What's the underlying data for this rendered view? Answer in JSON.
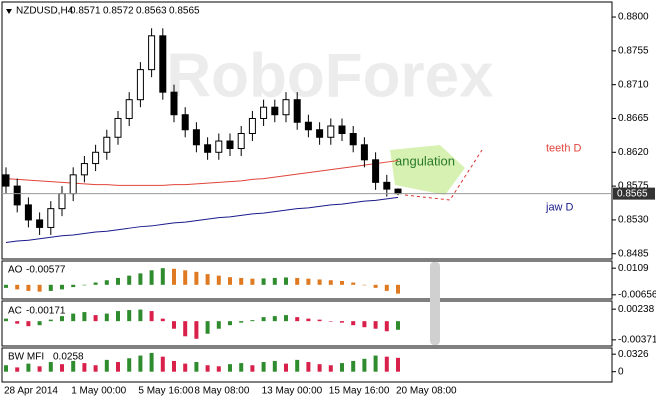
{
  "chart_data": [
    {
      "type": "candlestick",
      "title": "NZDUSD,H4",
      "watermark": "RoboForex",
      "grid": false,
      "categories": [
        "28 Apr 2014",
        null,
        null,
        null,
        null,
        null,
        "1 May 00:00",
        null,
        null,
        null,
        null,
        null,
        "5 May 16:00",
        null,
        null,
        null,
        null,
        "8 May 08:00",
        null,
        null,
        null,
        null,
        null,
        "13 May 00:00",
        null,
        null,
        null,
        null,
        null,
        "15 May 16:00",
        null,
        null,
        null,
        null,
        null,
        "20 May 08:00"
      ],
      "open": [
        0.859,
        0.8575,
        0.855,
        0.853,
        0.852,
        0.8545,
        0.8565,
        0.859,
        0.8605,
        0.862,
        0.864,
        0.8665,
        0.869,
        0.873,
        0.8775,
        0.87,
        0.867,
        0.865,
        0.863,
        0.862,
        0.8635,
        0.8625,
        0.8645,
        0.8665,
        0.868,
        0.867,
        0.869,
        0.866,
        0.865,
        0.864,
        0.8655,
        0.8645,
        0.863,
        0.861,
        0.858,
        0.8571
      ],
      "high": [
        0.86,
        0.8585,
        0.856,
        0.854,
        0.8555,
        0.8575,
        0.86,
        0.8615,
        0.863,
        0.865,
        0.8675,
        0.87,
        0.874,
        0.8785,
        0.8785,
        0.871,
        0.868,
        0.866,
        0.864,
        0.8645,
        0.8645,
        0.8655,
        0.8675,
        0.869,
        0.869,
        0.87,
        0.87,
        0.867,
        0.866,
        0.8665,
        0.8665,
        0.8655,
        0.864,
        0.862,
        0.859,
        0.8572
      ],
      "low": [
        0.8565,
        0.854,
        0.852,
        0.851,
        0.851,
        0.8535,
        0.8555,
        0.858,
        0.8595,
        0.861,
        0.863,
        0.8655,
        0.868,
        0.872,
        0.869,
        0.866,
        0.864,
        0.862,
        0.861,
        0.861,
        0.8615,
        0.8615,
        0.8635,
        0.8655,
        0.866,
        0.866,
        0.865,
        0.864,
        0.863,
        0.863,
        0.8635,
        0.862,
        0.86,
        0.857,
        0.8561,
        0.8563
      ],
      "close": [
        0.8575,
        0.855,
        0.853,
        0.852,
        0.8545,
        0.8565,
        0.859,
        0.8605,
        0.862,
        0.864,
        0.8665,
        0.869,
        0.873,
        0.8775,
        0.87,
        0.867,
        0.865,
        0.863,
        0.862,
        0.8635,
        0.8625,
        0.8645,
        0.8665,
        0.868,
        0.867,
        0.869,
        0.866,
        0.865,
        0.864,
        0.8655,
        0.8645,
        0.863,
        0.861,
        0.858,
        0.8571,
        0.8565
      ],
      "lines": [
        {
          "name": "jaw D",
          "color": "#1a1a8c",
          "values": [
            0.85,
            0.8502,
            0.8503,
            0.8505,
            0.8507,
            0.8509,
            0.851,
            0.8512,
            0.8514,
            0.8515,
            0.8517,
            0.8519,
            0.8521,
            0.8522,
            0.8524,
            0.8526,
            0.8527,
            0.8529,
            0.8531,
            0.8533,
            0.8534,
            0.8536,
            0.8538,
            0.8539,
            0.8541,
            0.8543,
            0.8545,
            0.8546,
            0.8548,
            0.855,
            0.8551,
            0.8553,
            0.8555,
            0.8556,
            0.8558,
            0.856
          ]
        },
        {
          "name": "teeth D",
          "color": "#e0443a",
          "values": [
            0.8585,
            0.8584,
            0.8583,
            0.8582,
            0.8581,
            0.858,
            0.8579,
            0.8578,
            0.8577,
            0.8577,
            0.8576,
            0.8576,
            0.8576,
            0.8576,
            0.8576,
            0.8577,
            0.8577,
            0.8578,
            0.8579,
            0.858,
            0.8581,
            0.8582,
            0.8584,
            0.8585,
            0.8587,
            0.8589,
            0.8591,
            0.8593,
            0.8595,
            0.8597,
            0.8599,
            0.8601,
            0.8603,
            0.8605,
            0.8607,
            0.8609
          ]
        }
      ],
      "annotation": "angulation",
      "ylim": [
        0.8478,
        0.882
      ],
      "yticks": [
        0.8485,
        {
          "value": 0.853,
          "label": "0.8530"
        },
        0.8575,
        {
          "value": 0.862,
          "label": "0.8620"
        },
        0.8665,
        {
          "value": 0.871,
          "label": "0.8710"
        },
        0.8755,
        {
          "value": 0.88,
          "label": "0.8800"
        }
      ]
    },
    {
      "type": "bar",
      "title": "AO",
      "last": -0.00577,
      "up_color": "#2e8b2e",
      "down_color": "#e07a22",
      "values": [
        -0.002,
        -0.003,
        -0.004,
        -0.0045,
        -0.004,
        -0.003,
        -0.0015,
        0,
        0.0015,
        0.003,
        0.0045,
        0.006,
        0.0075,
        0.0095,
        0.0109,
        0.0105,
        0.0095,
        0.0085,
        0.007,
        0.006,
        0.005,
        0.0045,
        0.004,
        0.0042,
        0.0045,
        0.0048,
        0.0045,
        0.004,
        0.0035,
        0.003,
        0.0025,
        0.0015,
        0,
        -0.002,
        -0.004,
        -0.00577
      ],
      "ylim": [
        -0.0093,
        0.0156
      ],
      "yticks": [
        -0.00656,
        0.0109
      ]
    },
    {
      "type": "bar",
      "title": "AC",
      "last": -0.00171,
      "up_color": "#2e8b2e",
      "down_color": "#d8204a",
      "values": [
        0.0005,
        -0.0005,
        -0.001,
        -0.0008,
        0.0003,
        0.001,
        0.0015,
        0.0018,
        0.0012,
        0.0015,
        0.002,
        0.0022,
        0.0023,
        0.002,
        0.0005,
        -0.0015,
        -0.003,
        -0.0035,
        -0.0025,
        -0.0015,
        -0.0008,
        -0.0003,
        0.0002,
        0.0008,
        0.001,
        0.0012,
        0.0008,
        0.0005,
        0.0003,
        0,
        -0.0003,
        -0.0008,
        -0.0012,
        -0.0015,
        -0.002,
        -0.00171
      ],
      "ylim": [
        -0.00493,
        0.004
      ],
      "yticks": [
        -0.00371,
        0.00238
      ]
    },
    {
      "type": "bar",
      "title": "BW MFI",
      "last": 0.0258,
      "up_color": "#2e8b2e",
      "down_color": "#d8204a",
      "values": [
        0.012,
        0.008,
        0.015,
        0.01,
        0.018,
        0.014,
        0.02,
        0.016,
        0.012,
        0.022,
        0.018,
        0.025,
        0.03,
        0.035,
        0.028,
        0.02,
        0.015,
        0.018,
        0.012,
        0.01,
        0.014,
        0.016,
        0.012,
        0.018,
        0.02,
        0.015,
        0.022,
        0.018,
        0.014,
        0.012,
        0.016,
        0.02,
        0.024,
        0.03,
        0.028,
        0.0258
      ],
      "ylim": [
        -0.0192,
        0.0441
      ],
      "yticks": [
        0,
        0.0326
      ]
    }
  ]
}
